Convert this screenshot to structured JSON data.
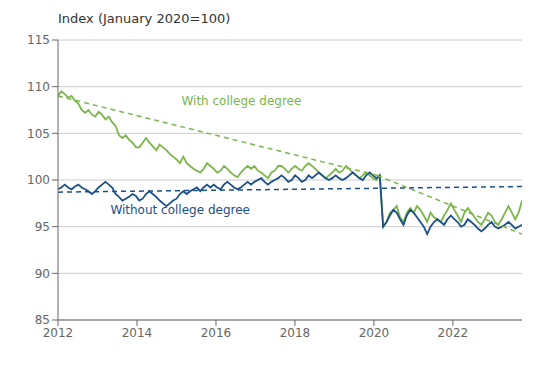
{
  "chart_data": {
    "type": "line",
    "title": "Index (January 2020=100)",
    "xlim": [
      2012,
      2023.75
    ],
    "ylim": [
      85,
      115
    ],
    "xticks": [
      2012,
      2014,
      2016,
      2018,
      2020,
      2022
    ],
    "yticks": [
      85,
      90,
      95,
      100,
      105,
      110,
      115
    ],
    "grid": "y",
    "series": [
      {
        "name": "With college degree",
        "color": "#7ab648",
        "line_style": "solid",
        "x": [
          2012,
          2012.0858,
          2012.1715,
          2012.2573,
          2012.3431,
          2012.4288,
          2012.5146,
          2012.6004,
          2012.6861,
          2012.7719,
          2012.8577,
          2012.9434,
          2013.0292,
          2013.115,
          2013.2007,
          2013.2865,
          2013.3723,
          2013.458,
          2013.5438,
          2013.6296,
          2013.7153,
          2013.8011,
          2013.8869,
          2013.9726,
          2014.0584,
          2014.1442,
          2014.2299,
          2014.3157,
          2014.4015,
          2014.4872,
          2014.573,
          2014.6588,
          2014.7445,
          2014.8303,
          2014.9161,
          2015.0018,
          2015.0876,
          2015.1734,
          2015.2591,
          2015.3449,
          2015.4307,
          2015.5164,
          2015.6022,
          2015.688,
          2015.7737,
          2015.8595,
          2015.9453,
          2016.031,
          2016.1168,
          2016.2026,
          2016.2883,
          2016.3741,
          2016.4599,
          2016.5456,
          2016.6314,
          2016.7172,
          2016.8029,
          2016.8887,
          2016.9745,
          2017.0602,
          2017.146,
          2017.2318,
          2017.3175,
          2017.4033,
          2017.4891,
          2017.5748,
          2017.6606,
          2017.7464,
          2017.8321,
          2017.9179,
          2018.0036,
          2018.0894,
          2018.1752,
          2018.2609,
          2018.3467,
          2018.4325,
          2018.5182,
          2018.604,
          2018.6898,
          2018.7755,
          2018.8613,
          2018.9471,
          2019.0328,
          2019.1186,
          2019.2044,
          2019.2901,
          2019.3759,
          2019.4617,
          2019.5474,
          2019.6332,
          2019.719,
          2019.8047,
          2019.8905,
          2019.9763,
          2020.062,
          2020.1478,
          2020.2336,
          2020.3193,
          2020.4051,
          2020.4909,
          2020.5766,
          2020.6624,
          2020.7482,
          2020.8339,
          2020.9197,
          2021.0055,
          2021.0912,
          2021.177,
          2021.2628,
          2021.3485,
          2021.4343,
          2021.5201,
          2021.6058,
          2021.6916,
          2021.7774,
          2021.8631,
          2021.9489,
          2022.0347,
          2022.1204,
          2022.2062,
          2022.292,
          2022.3777,
          2022.4635,
          2022.5493,
          2022.635,
          2022.7208,
          2022.8066,
          2022.8923,
          2022.9781,
          2023.0639,
          2023.1496,
          2023.2354,
          2023.3212,
          2023.4069,
          2023.4927,
          2023.5785,
          2023.6642,
          2023.75
        ],
        "values": [
          109.0,
          109.5,
          109.2,
          108.8,
          109.0,
          108.5,
          108.2,
          107.5,
          107.2,
          107.5,
          107.0,
          106.8,
          107.3,
          107.0,
          106.5,
          106.8,
          106.2,
          105.8,
          104.8,
          104.5,
          104.8,
          104.3,
          104.0,
          103.5,
          103.5,
          104.0,
          104.5,
          104.0,
          103.6,
          103.2,
          103.8,
          103.5,
          103.2,
          102.8,
          102.5,
          102.2,
          101.8,
          102.5,
          101.8,
          101.5,
          101.2,
          101.0,
          100.8,
          101.2,
          101.8,
          101.5,
          101.2,
          100.8,
          101.0,
          101.5,
          101.2,
          100.8,
          100.5,
          100.3,
          100.8,
          101.2,
          101.5,
          101.2,
          101.5,
          101.0,
          100.8,
          100.5,
          100.2,
          100.8,
          101.0,
          101.5,
          101.5,
          101.2,
          100.8,
          101.2,
          101.5,
          101.2,
          101.0,
          101.5,
          101.8,
          101.5,
          101.2,
          100.8,
          100.5,
          100.2,
          100.5,
          100.8,
          101.2,
          100.8,
          101.0,
          101.5,
          101.2,
          100.8,
          100.5,
          100.2,
          100.5,
          100.8,
          100.5,
          100.2,
          100.0,
          100.5,
          95.0,
          95.5,
          96.5,
          96.8,
          97.2,
          96.0,
          95.5,
          96.5,
          97.0,
          96.5,
          97.2,
          96.8,
          96.2,
          95.5,
          96.5,
          96.0,
          95.8,
          95.5,
          96.2,
          96.8,
          97.5,
          96.8,
          96.2,
          95.5,
          96.5,
          97.0,
          96.5,
          96.0,
          95.5,
          95.2,
          95.8,
          96.5,
          96.2,
          95.5,
          95.2,
          95.8,
          96.5,
          97.2,
          96.5,
          95.8,
          96.5,
          97.8
        ]
      },
      {
        "name": "Without college degree",
        "color": "#1b4f8a",
        "line_style": "solid",
        "x": [
          2012,
          2012.0858,
          2012.1715,
          2012.2573,
          2012.3431,
          2012.4288,
          2012.5146,
          2012.6004,
          2012.6861,
          2012.7719,
          2012.8577,
          2012.9434,
          2013.0292,
          2013.115,
          2013.2007,
          2013.2865,
          2013.3723,
          2013.458,
          2013.5438,
          2013.6296,
          2013.7153,
          2013.8011,
          2013.8869,
          2013.9726,
          2014.0584,
          2014.1442,
          2014.2299,
          2014.3157,
          2014.4015,
          2014.4872,
          2014.573,
          2014.6588,
          2014.7445,
          2014.8303,
          2014.9161,
          2015.0018,
          2015.0876,
          2015.1734,
          2015.2591,
          2015.3449,
          2015.4307,
          2015.5164,
          2015.6022,
          2015.688,
          2015.7737,
          2015.8595,
          2015.9453,
          2016.031,
          2016.1168,
          2016.2026,
          2016.2883,
          2016.3741,
          2016.4599,
          2016.5456,
          2016.6314,
          2016.7172,
          2016.8029,
          2016.8887,
          2016.9745,
          2017.0602,
          2017.146,
          2017.2318,
          2017.3175,
          2017.4033,
          2017.4891,
          2017.5748,
          2017.6606,
          2017.7464,
          2017.8321,
          2017.9179,
          2018.0036,
          2018.0894,
          2018.1752,
          2018.2609,
          2018.3467,
          2018.4325,
          2018.5182,
          2018.604,
          2018.6898,
          2018.7755,
          2018.8613,
          2018.9471,
          2019.0328,
          2019.1186,
          2019.2044,
          2019.2901,
          2019.3759,
          2019.4617,
          2019.5474,
          2019.6332,
          2019.719,
          2019.8047,
          2019.8905,
          2019.9763,
          2020.062,
          2020.1478,
          2020.2336,
          2020.3193,
          2020.4051,
          2020.4909,
          2020.5766,
          2020.6624,
          2020.7482,
          2020.8339,
          2020.9197,
          2021.0055,
          2021.0912,
          2021.177,
          2021.2628,
          2021.3485,
          2021.4343,
          2021.5201,
          2021.6058,
          2021.6916,
          2021.7774,
          2021.8631,
          2021.9489,
          2022.0347,
          2022.1204,
          2022.2062,
          2022.292,
          2022.3777,
          2022.4635,
          2022.5493,
          2022.635,
          2022.7208,
          2022.8066,
          2022.8923,
          2022.9781,
          2023.0639,
          2023.1496,
          2023.2354,
          2023.3212,
          2023.4069,
          2023.4927,
          2023.5785,
          2023.6642,
          2023.75
        ],
        "values": [
          99.0,
          99.2,
          99.5,
          99.2,
          99.0,
          99.3,
          99.5,
          99.2,
          99.0,
          98.8,
          98.5,
          98.8,
          99.2,
          99.5,
          99.8,
          99.5,
          99.2,
          98.5,
          98.2,
          97.8,
          98.0,
          98.2,
          98.5,
          98.3,
          97.8,
          98.0,
          98.5,
          98.8,
          98.5,
          98.2,
          97.8,
          97.5,
          97.2,
          97.5,
          97.8,
          98.0,
          98.5,
          98.8,
          98.5,
          98.8,
          99.0,
          99.2,
          98.8,
          99.2,
          99.5,
          99.2,
          99.5,
          99.2,
          99.0,
          99.5,
          99.8,
          99.5,
          99.2,
          99.0,
          99.2,
          99.5,
          99.8,
          99.5,
          99.8,
          100.0,
          100.2,
          99.8,
          99.5,
          99.8,
          100.0,
          100.2,
          100.5,
          100.2,
          99.8,
          100.0,
          100.5,
          100.2,
          99.8,
          100.0,
          100.5,
          100.2,
          100.5,
          100.8,
          100.5,
          100.2,
          100.0,
          100.2,
          100.5,
          100.2,
          100.0,
          100.2,
          100.5,
          100.8,
          100.5,
          100.2,
          100.0,
          100.5,
          100.8,
          100.5,
          100.2,
          100.5,
          95.0,
          95.5,
          96.2,
          96.8,
          96.5,
          95.8,
          95.2,
          96.2,
          96.8,
          96.5,
          96.0,
          95.5,
          95.0,
          94.2,
          95.0,
          95.5,
          95.8,
          95.5,
          95.2,
          95.8,
          96.2,
          95.8,
          95.5,
          95.0,
          95.2,
          95.8,
          95.5,
          95.2,
          94.8,
          94.5,
          94.8,
          95.2,
          95.5,
          95.0,
          94.8,
          95.0,
          95.2,
          95.5,
          95.2,
          94.8,
          95.0,
          95.2
        ]
      },
      {
        "color": "#7ab648",
        "line_style": "dashed",
        "x": [
          2012.0,
          2020.08
        ],
        "values": [
          109.0,
          100.5
        ]
      },
      {
        "color": "#7ab648",
        "line_style": "dashed",
        "x": [
          2020.08,
          2023.75
        ],
        "values": [
          100.5,
          94.2
        ]
      },
      {
        "color": "#1b4f8a",
        "line_style": "dashed",
        "x": [
          2012.0,
          2023.75
        ],
        "values": [
          98.7,
          99.3
        ]
      }
    ],
    "annotations": [
      {
        "text": "With college degree",
        "x": 2015.0,
        "y": 108.5,
        "color": "#7ab648"
      },
      {
        "text": "Without college degree",
        "x": 2013.2,
        "y": 96.8,
        "color": "#1b4f8a"
      }
    ]
  }
}
